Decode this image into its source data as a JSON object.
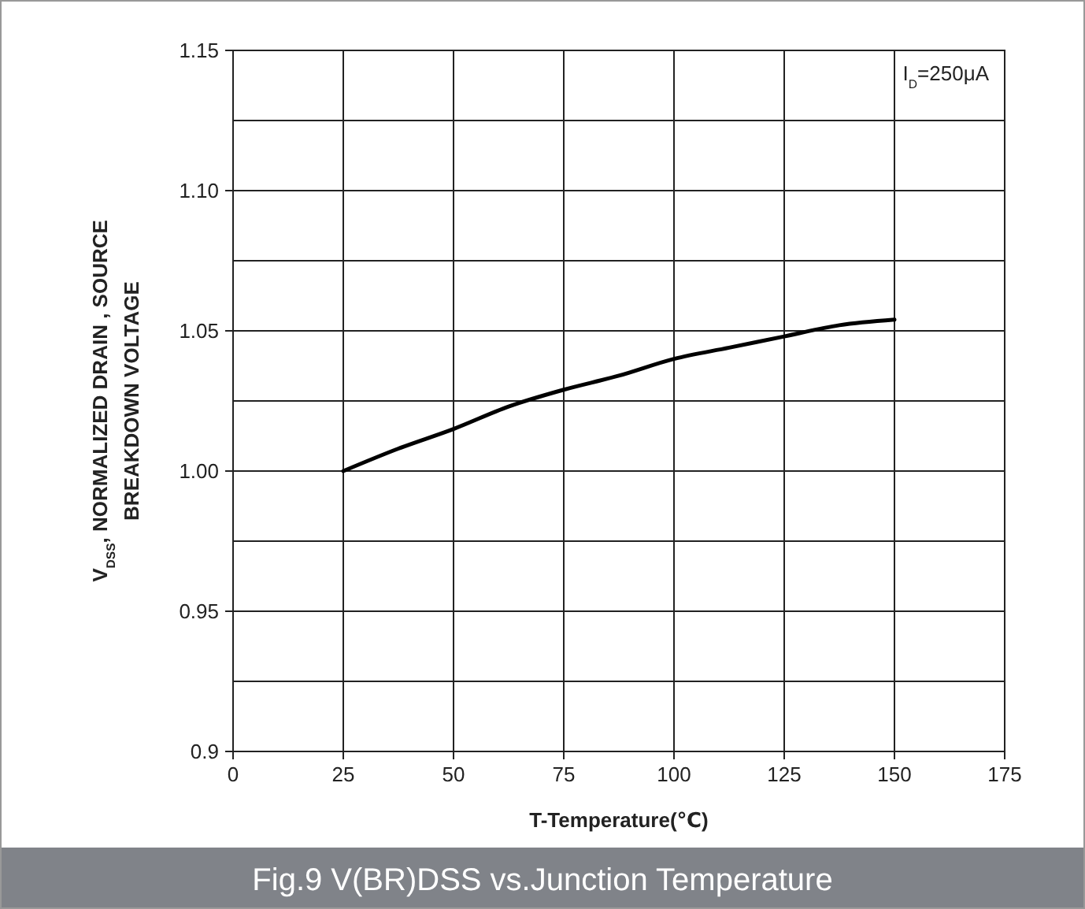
{
  "chart_data": {
    "type": "line",
    "title": "Fig.9 V(BR)DSS vs.Junction Temperature",
    "xlabel": "T-Temperature(℃)",
    "ylabel": "V$_{DSS}$, NORMALIZED DRAIN  , SOURCE\nBREAKDOWN VOLTAGE",
    "annotations": [
      "I$_{D}$=250μA"
    ],
    "x": [
      25,
      37.5,
      50,
      62.5,
      75,
      87.5,
      100,
      112.5,
      125,
      137.5,
      150
    ],
    "series": [
      {
        "color": "#000000",
        "values": [
          1.0,
          1.008,
          1.015,
          1.023,
          1.029,
          1.034,
          1.04,
          1.044,
          1.048,
          1.052,
          1.054
        ]
      }
    ],
    "xlim": [
      0,
      175
    ],
    "xticks": [
      0,
      25,
      50,
      75,
      100,
      125,
      150,
      175
    ],
    "ylim": [
      0.9,
      1.15
    ],
    "yticks": [
      {
        "value": 0.9,
        "label": "0.9"
      },
      {
        "value": 0.925,
        "label": null
      },
      {
        "value": 0.95,
        "label": "0.95"
      },
      {
        "value": 0.975,
        "label": null
      },
      {
        "value": 1.0,
        "label": "1.00"
      },
      {
        "value": 1.025,
        "label": null
      },
      {
        "value": 1.05,
        "label": "1.05"
      },
      {
        "value": 1.075,
        "label": null
      },
      {
        "value": 1.1,
        "label": "1.10"
      },
      {
        "value": 1.125,
        "label": null
      },
      {
        "value": 1.15,
        "label": "1.15"
      }
    ],
    "grid": true,
    "marker": "none",
    "line_style": "solid"
  }
}
